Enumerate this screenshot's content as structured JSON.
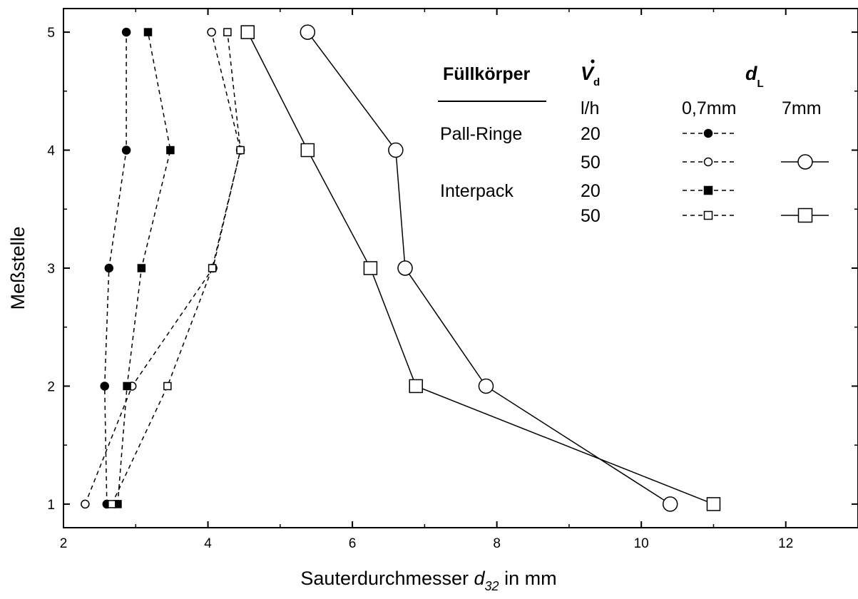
{
  "chart_data": {
    "type": "line",
    "xlabel": {
      "main": "Sauterdurchmesser ",
      "sym": "d",
      "sub": "32",
      "unit": " in mm"
    },
    "ylabel": "Meßstelle",
    "xlim": [
      2,
      13
    ],
    "ylim": [
      0.8,
      5.2
    ],
    "xticks": [
      2,
      4,
      6,
      8,
      10,
      12
    ],
    "yticks": [
      1,
      2,
      3,
      4,
      5
    ],
    "grid": false,
    "legend_placement": "top-right",
    "series": [
      {
        "packing": "Pall-Ringe",
        "flow": "20",
        "dL": "0,7mm",
        "marker": "circle",
        "filled": true,
        "dashed": true,
        "large": false,
        "points": [
          [
            2.6,
            1
          ],
          [
            2.57,
            2
          ],
          [
            2.63,
            3
          ],
          [
            2.87,
            4
          ],
          [
            2.87,
            5
          ]
        ]
      },
      {
        "packing": "Pall-Ringe",
        "flow": "50",
        "dL": "0,7mm",
        "marker": "circle",
        "filled": false,
        "dashed": true,
        "large": false,
        "points": [
          [
            2.3,
            1
          ],
          [
            2.95,
            2
          ],
          [
            4.07,
            3
          ],
          [
            4.45,
            4
          ],
          [
            4.05,
            5
          ]
        ]
      },
      {
        "packing": "Interpack",
        "flow": "20",
        "dL": "0,7mm",
        "marker": "square",
        "filled": true,
        "dashed": true,
        "large": false,
        "points": [
          [
            2.75,
            1
          ],
          [
            2.88,
            2
          ],
          [
            3.08,
            3
          ],
          [
            3.48,
            4
          ],
          [
            3.17,
            5
          ]
        ]
      },
      {
        "packing": "Interpack",
        "flow": "50",
        "dL": "0,7mm",
        "marker": "square",
        "filled": false,
        "dashed": true,
        "large": false,
        "points": [
          [
            2.67,
            1
          ],
          [
            3.44,
            2
          ],
          [
            4.06,
            3
          ],
          [
            4.45,
            4
          ],
          [
            4.27,
            5
          ]
        ]
      },
      {
        "packing": "Pall-Ringe",
        "flow": "50",
        "dL": "7mm",
        "marker": "circle",
        "filled": false,
        "dashed": false,
        "large": true,
        "points": [
          [
            10.4,
            1
          ],
          [
            7.85,
            2
          ],
          [
            6.73,
            3
          ],
          [
            6.6,
            4
          ],
          [
            5.38,
            5
          ]
        ]
      },
      {
        "packing": "Interpack",
        "flow": "50",
        "dL": "7mm",
        "marker": "square",
        "filled": false,
        "dashed": false,
        "large": true,
        "points": [
          [
            11.0,
            1
          ],
          [
            6.88,
            2
          ],
          [
            6.25,
            3
          ],
          [
            5.38,
            4
          ],
          [
            4.55,
            5
          ]
        ]
      }
    ]
  },
  "legend": {
    "header_packing": "Füllkörper",
    "header_flow_symbol": "V",
    "header_flow_sub": "d",
    "header_dL_symbol": "d",
    "header_dL_sub": "L",
    "unit_flow": "l/h",
    "dL_small": "0,7mm",
    "dL_large": "7mm",
    "rows": [
      {
        "packing": "Pall-Ringe",
        "flow": "20"
      },
      {
        "packing": "",
        "flow": "50"
      },
      {
        "packing": "Interpack",
        "flow": "20"
      },
      {
        "packing": "",
        "flow": "50"
      }
    ]
  }
}
